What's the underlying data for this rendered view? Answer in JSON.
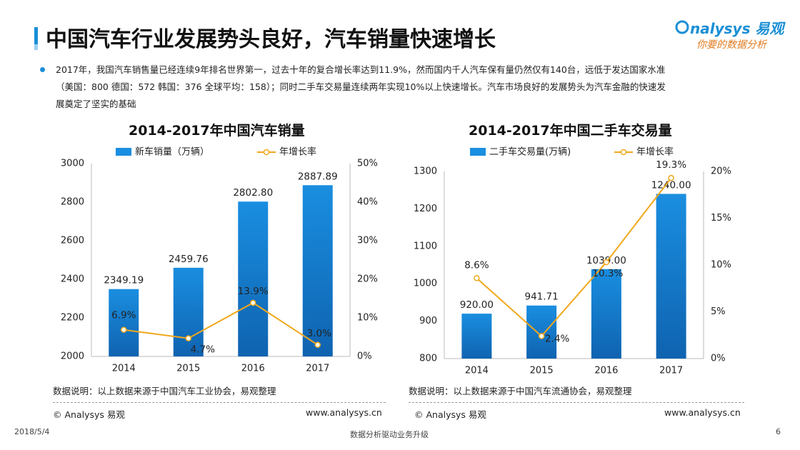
{
  "header": {
    "title": "中国汽车行业发展势头良好，汽车销量快速增长",
    "logo_brand": "nalysys 易观",
    "logo_slogan": "你要的数据分析"
  },
  "summary": {
    "line1": "2017年，我国汽车销售量已经连续9年排名世界第一，过去十年的复合增长率达到11.9%，然而国内千人汽车保有量仍然仅有140台，远低于发达国家水准",
    "line2": "（美国：800  德国：572    韩国：376  全球平均：158）；同时二手车交易量连续两年实现10%以上快速增长。汽车市场良好的发展势头为汽车金融的快速发",
    "line3": "展奠定了坚实的基础"
  },
  "left": {
    "note": "数据说明：以上数据来源于中国汽车工业协会，易观整理",
    "copyright": "© Analysys 易观",
    "website": "www.analysys.cn"
  },
  "right": {
    "note": "数据说明：以上数据来源于中国汽车流通协会，易观整理",
    "copyright": "© Analysys 易观",
    "website": "www.analysys.cn"
  },
  "footer": {
    "date": "2018/5/4",
    "center": "数据分析驱动业务升级",
    "page": "6"
  },
  "colors": {
    "bar_top": "#1a8ee0",
    "bar_bottom": "#0f63b0",
    "line": "#f0a81c",
    "accent": "#1a8fd6"
  },
  "chart_data": [
    {
      "type": "bar",
      "title": "2014-2017年中国汽车销量",
      "categories": [
        "2014",
        "2015",
        "2016",
        "2017"
      ],
      "series": [
        {
          "name": "新车销量（万辆）",
          "type": "bar",
          "axis": "left",
          "values": [
            2349.19,
            2459.76,
            2802.8,
            2887.89
          ],
          "labels": [
            "2349.19",
            "2459.76",
            "2802.80",
            "2887.89"
          ]
        },
        {
          "name": "年增长率",
          "type": "line",
          "axis": "right",
          "values": [
            6.9,
            4.7,
            13.9,
            3.0
          ],
          "labels": [
            "6.9%",
            "4.7%",
            "13.9%",
            "3.0%"
          ]
        }
      ],
      "ylim_left": [
        2000,
        3000
      ],
      "yticks_left": [
        "2000",
        "2200",
        "2400",
        "2600",
        "2800",
        "3000"
      ],
      "ylim_right": [
        0,
        50
      ],
      "yticks_right": [
        "0%",
        "10%",
        "20%",
        "30%",
        "40%",
        "50%"
      ],
      "legend": "top",
      "grid": false
    },
    {
      "type": "bar",
      "title": "2014-2017年中国二手车交易量",
      "categories": [
        "2014",
        "2015",
        "2016",
        "2017"
      ],
      "series": [
        {
          "name": "二手车交易量(万辆)",
          "type": "bar",
          "axis": "left",
          "values": [
            920.0,
            941.71,
            1039.0,
            1240.0
          ],
          "labels": [
            "920.00",
            "941.71",
            "1039.00",
            "1240.00"
          ]
        },
        {
          "name": "年增长率",
          "type": "line",
          "axis": "right",
          "values": [
            8.6,
            2.4,
            10.3,
            19.3
          ],
          "labels": [
            "8.6%",
            "2.4%",
            "10.3%",
            "19.3%"
          ]
        }
      ],
      "ylim_left": [
        800,
        1300
      ],
      "yticks_left": [
        "800",
        "900",
        "1000",
        "1100",
        "1200",
        "1300"
      ],
      "ylim_right": [
        0,
        20
      ],
      "yticks_right": [
        "0%",
        "5%",
        "10%",
        "15%",
        "20%"
      ],
      "legend": "top",
      "grid": false
    }
  ]
}
